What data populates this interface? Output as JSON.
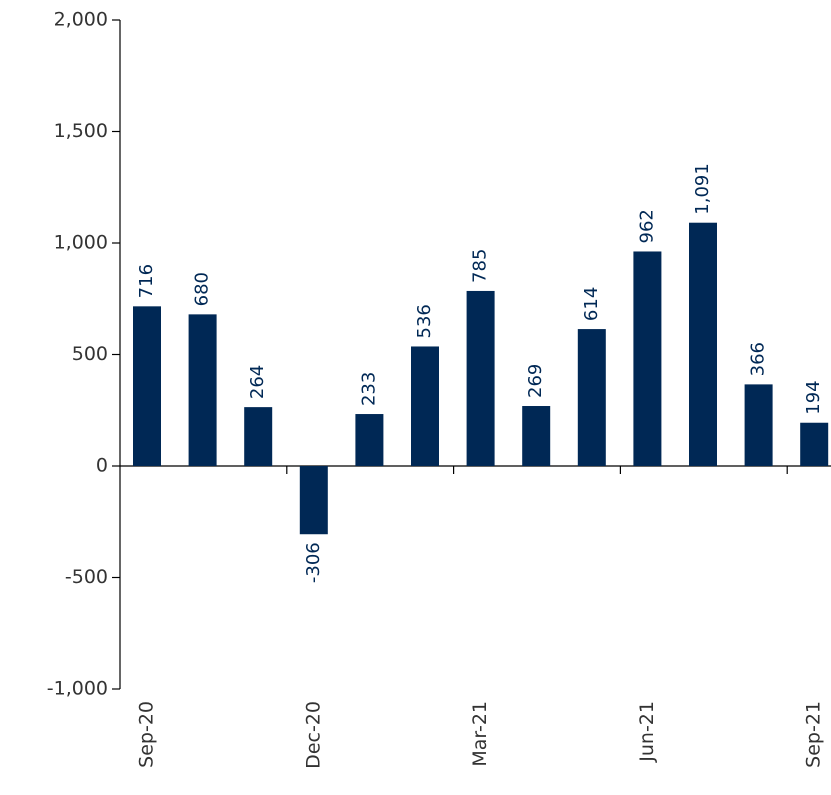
{
  "chart_data": {
    "type": "bar",
    "categories": [
      "Sep-20",
      null,
      null,
      "Dec-20",
      null,
      null,
      "Mar-21",
      null,
      null,
      "Jun-21",
      null,
      null,
      "Sep-21"
    ],
    "values": [
      716,
      680,
      264,
      -306,
      233,
      536,
      785,
      269,
      614,
      962,
      1091,
      366,
      194
    ],
    "value_labels": [
      "716",
      "680",
      "264",
      "-306",
      "233",
      "536",
      "785",
      "269",
      "614",
      "962",
      "1,091",
      "366",
      "194"
    ],
    "color": "#002855",
    "ylim": [
      -1000,
      2000
    ],
    "yticks": [
      {
        "value": -1000,
        "label": "-1,000"
      },
      -500,
      0,
      500,
      {
        "value": 1000,
        "label": "1,000"
      },
      {
        "value": 1500,
        "label": "1,500"
      },
      {
        "value": 2000,
        "label": "2,000"
      }
    ]
  }
}
